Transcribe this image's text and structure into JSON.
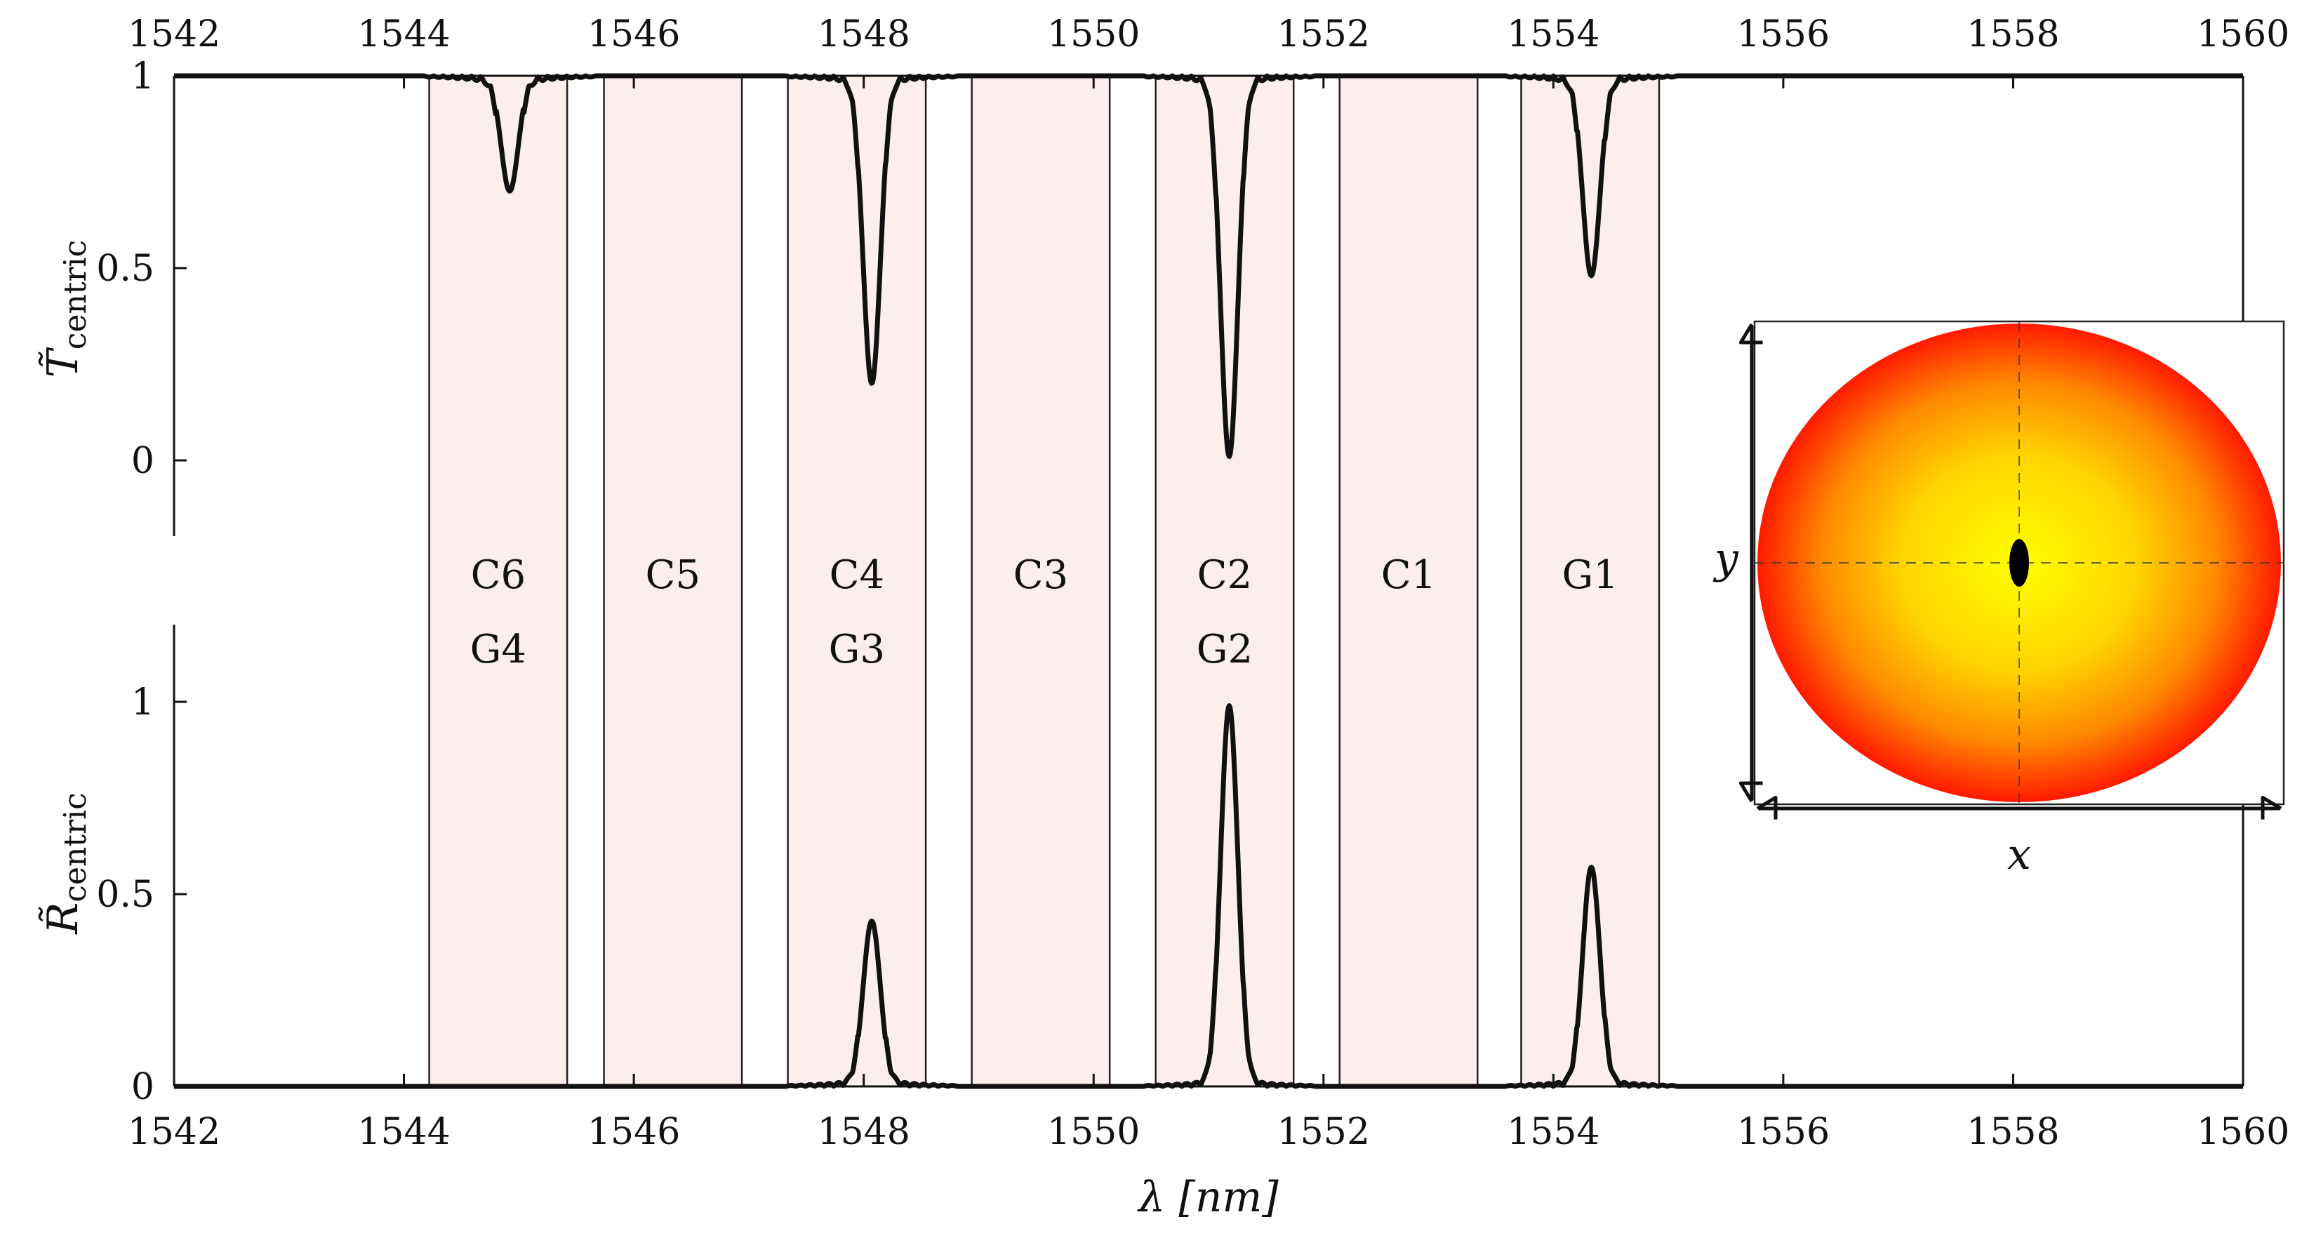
{
  "chart_data": {
    "type": "line",
    "x": {
      "label": "λ [nm]",
      "range": [
        1542,
        1560
      ],
      "ticks": [
        1542,
        1544,
        1546,
        1548,
        1550,
        1552,
        1554,
        1556,
        1558,
        1560
      ]
    },
    "panels": [
      {
        "id": "top",
        "ylabel_main": "T̃",
        "ylabel_sub": "centric",
        "y_range": [
          -0.2,
          1.0
        ],
        "y_ticks": [
          0,
          0.5,
          1
        ],
        "y_tick_labels": [
          "0",
          "0.5",
          "1"
        ],
        "baseline": 1,
        "dips": [
          {
            "center": 1544.92,
            "value": 0.7
          },
          {
            "center": 1548.07,
            "value": 0.2
          },
          {
            "center": 1551.18,
            "value": 0.01
          },
          {
            "center": 1554.33,
            "value": 0.48
          }
        ]
      },
      {
        "id": "bottom",
        "ylabel_main": "R̃",
        "ylabel_sub": "centric",
        "y_range": [
          0,
          1.25
        ],
        "y_ticks": [
          0,
          0.5,
          1
        ],
        "y_tick_labels": [
          "0",
          "0.5",
          "1"
        ],
        "baseline": 0,
        "peaks": [
          {
            "center": 1548.07,
            "value": 0.43
          },
          {
            "center": 1551.18,
            "value": 0.99
          },
          {
            "center": 1554.33,
            "value": 0.57
          }
        ]
      }
    ],
    "bands": [
      {
        "x0": 1544.22,
        "x1": 1545.42,
        "labels": [
          "C6",
          "G4"
        ]
      },
      {
        "x0": 1545.74,
        "x1": 1546.94,
        "labels": [
          "C5"
        ]
      },
      {
        "x0": 1547.34,
        "x1": 1548.54,
        "labels": [
          "C4",
          "G3"
        ]
      },
      {
        "x0": 1548.94,
        "x1": 1550.14,
        "labels": [
          "C3"
        ]
      },
      {
        "x0": 1550.54,
        "x1": 1551.74,
        "labels": [
          "C2",
          "G2"
        ]
      },
      {
        "x0": 1552.14,
        "x1": 1553.34,
        "labels": [
          "C1"
        ]
      },
      {
        "x0": 1553.72,
        "x1": 1554.92,
        "labels": [
          "G1"
        ]
      }
    ],
    "inset": {
      "xlabel": "x",
      "ylabel": "y",
      "colors": {
        "center": "#ffff00",
        "mid": "#ffa500",
        "edge": "#ff1a00",
        "core": "#000000"
      }
    },
    "colors": {
      "band_fill": "#fdeeee",
      "line": "#111111",
      "band_edge": "#222222"
    }
  }
}
